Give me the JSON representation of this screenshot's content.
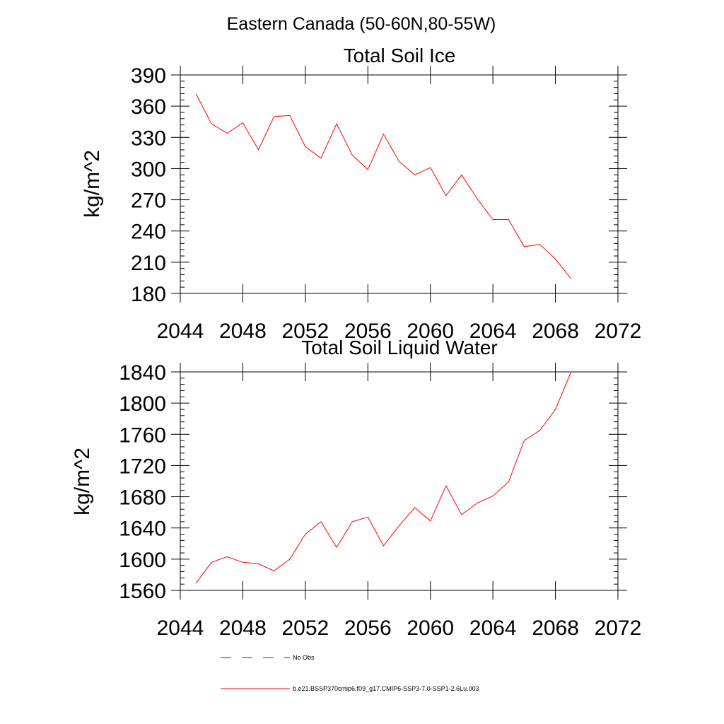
{
  "figure": {
    "title": "Eastern Canada (50-60N,80-55W)"
  },
  "chart_data": [
    {
      "type": "line",
      "title": "Total Soil Ice",
      "xlabel": "",
      "ylabel": "kg/m^2",
      "xlim": [
        2044,
        2072
      ],
      "ylim": [
        180,
        390
      ],
      "xticks": [
        2044,
        2048,
        2052,
        2056,
        2060,
        2064,
        2068,
        2072
      ],
      "yticks": [
        180,
        210,
        240,
        270,
        300,
        330,
        360,
        390
      ],
      "grid": false,
      "series": [
        {
          "color": "#ff0000",
          "x": [
            2045,
            2046,
            2047,
            2048,
            2049,
            2050,
            2051,
            2052,
            2053,
            2054,
            2055,
            2056,
            2057,
            2058,
            2059,
            2060,
            2061,
            2062,
            2063,
            2064,
            2065,
            2066,
            2067,
            2068,
            2069
          ],
          "y": [
            372,
            343,
            334,
            344,
            318,
            350,
            351,
            321,
            310,
            343,
            313,
            299,
            333,
            307,
            294,
            301,
            274,
            294,
            271,
            251,
            251,
            225,
            227,
            213,
            194
          ]
        }
      ]
    },
    {
      "type": "line",
      "title": "Total Soil Liquid Water",
      "xlabel": "",
      "ylabel": "kg/m^2",
      "xlim": [
        2044,
        2072
      ],
      "ylim": [
        1560,
        1840
      ],
      "xticks": [
        2044,
        2048,
        2052,
        2056,
        2060,
        2064,
        2068,
        2072
      ],
      "yticks": [
        1560,
        1600,
        1640,
        1680,
        1720,
        1760,
        1800,
        1840
      ],
      "grid": false,
      "series": [
        {
          "color": "#ff0000",
          "x": [
            2045,
            2046,
            2047,
            2048,
            2049,
            2050,
            2051,
            2052,
            2053,
            2054,
            2055,
            2056,
            2057,
            2058,
            2059,
            2060,
            2061,
            2062,
            2063,
            2064,
            2065,
            2066,
            2067,
            2068,
            2069
          ],
          "y": [
            1569,
            1596,
            1603,
            1596,
            1594,
            1585,
            1600,
            1632,
            1648,
            1615,
            1648,
            1654,
            1617,
            1643,
            1666,
            1649,
            1694,
            1657,
            1672,
            1681,
            1699,
            1752,
            1765,
            1792,
            1840
          ]
        }
      ]
    }
  ],
  "legend": {
    "placement": "bottom",
    "entries": [
      {
        "label": "No Obs",
        "color": "#2d2d7a",
        "style": "dashed"
      },
      {
        "label": "b.e21.BSSP370cmip6.f09_g17.CMIP6-SSP3-7.0-SSP1-2.6Lu.003",
        "color": "#ff0000",
        "style": "solid"
      }
    ]
  }
}
